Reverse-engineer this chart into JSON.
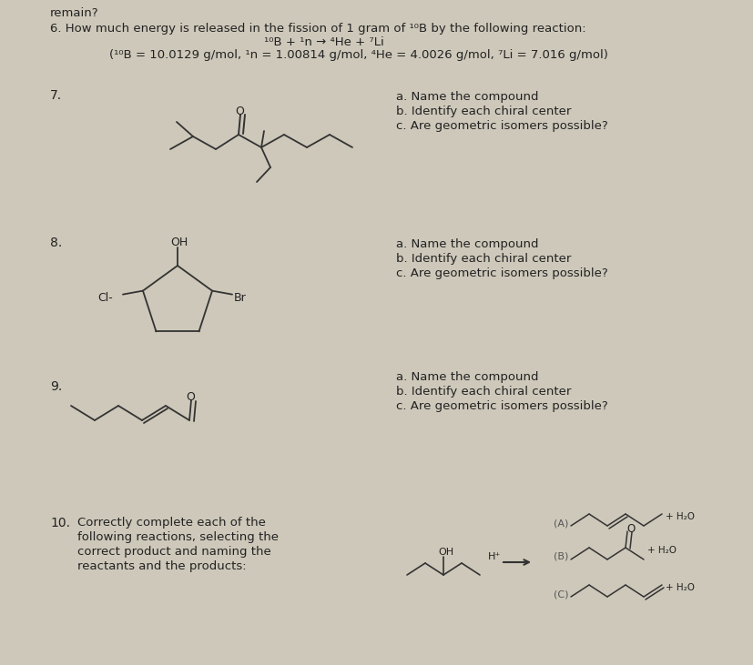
{
  "bg_color": "#cec8ba",
  "text_color": "#222222",
  "title_line": "remain?",
  "q6_line1": "6. How much energy is released in the fission of 1 gram of ¹⁰B by the following reaction:",
  "q6_line2": "¹⁰B + ¹n → ⁴He + ⁷Li",
  "q6_line3": "(¹⁰B = 10.0129 g/mol, ¹n = 1.00814 g/mol, ⁴He = 4.0026 g/mol, ⁷Li = 7.016 g/mol)",
  "q7_label": "7.",
  "q8_label": "8.",
  "q9_label": "9.",
  "q10_label": "10.",
  "abc_a": "a. Name the compound",
  "abc_b": "b. Identify each chiral center",
  "abc_c": "c. Are geometric isomers possible?",
  "q10_text1": "Correctly complete each of the",
  "q10_text2": "following reactions, selecting the",
  "q10_text3": "correct product and naming the",
  "q10_text4": "reactants and the products:",
  "label_A": "(A)",
  "label_B": "(B)",
  "label_C": "(C)",
  "plus_H2O": "+ H₂O",
  "H_plus": "H⁺",
  "OH_label": "OH",
  "Br_label": "Br",
  "Cl_label": "Cl-",
  "O_label": "O"
}
